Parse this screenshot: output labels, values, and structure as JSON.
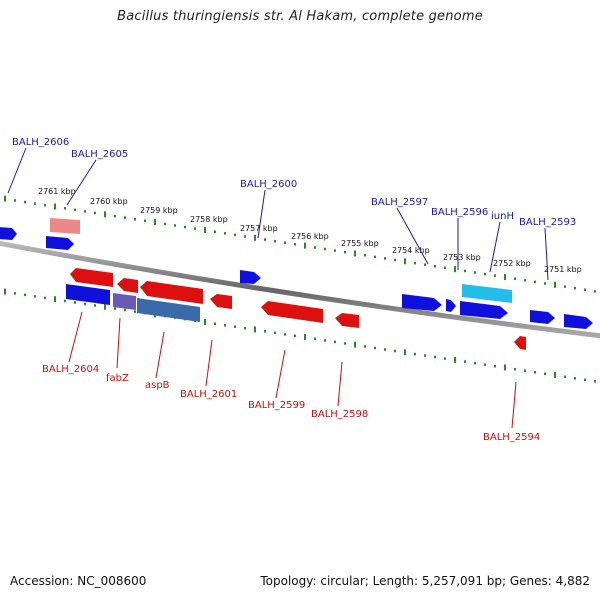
{
  "title": "Bacillus thuringiensis str. Al Hakam, complete genome",
  "footer": {
    "accession": "Accession: NC_008600",
    "summary": "Topology: circular; Length: 5,257,091 bp; Genes: 4,882"
  },
  "colors": {
    "forward_gene": "#1010dd",
    "reverse_gene": "#dd1010",
    "forward_label": "#1a1aa8",
    "reverse_label": "#c01010",
    "tick": "#2a8a2a",
    "backbone": "#777777",
    "highlight_forward": "#22bde8",
    "highlight_reverse": "#e07a7a",
    "fabZ": "#6a5ab8",
    "aspB": "#3a6aa8"
  },
  "kbp_labels": [
    "2761 kbp",
    "2760 kbp",
    "2759 kbp",
    "2758 kbp",
    "2757 kbp",
    "2756 kbp",
    "2755 kbp",
    "2754 kbp",
    "2753 kbp",
    "2752 kbp",
    "2751 kbp"
  ],
  "forward_gene_labels": [
    "BALH_2606",
    "BALH_2605",
    "BALH_2600",
    "BALH_2597",
    "BALH_2596",
    "iunH",
    "BALH_2593"
  ],
  "reverse_gene_labels": [
    "BALH_2604",
    "fabZ",
    "aspB",
    "BALH_2601",
    "BALH_2599",
    "BALH_2598",
    "BALH_2594"
  ]
}
